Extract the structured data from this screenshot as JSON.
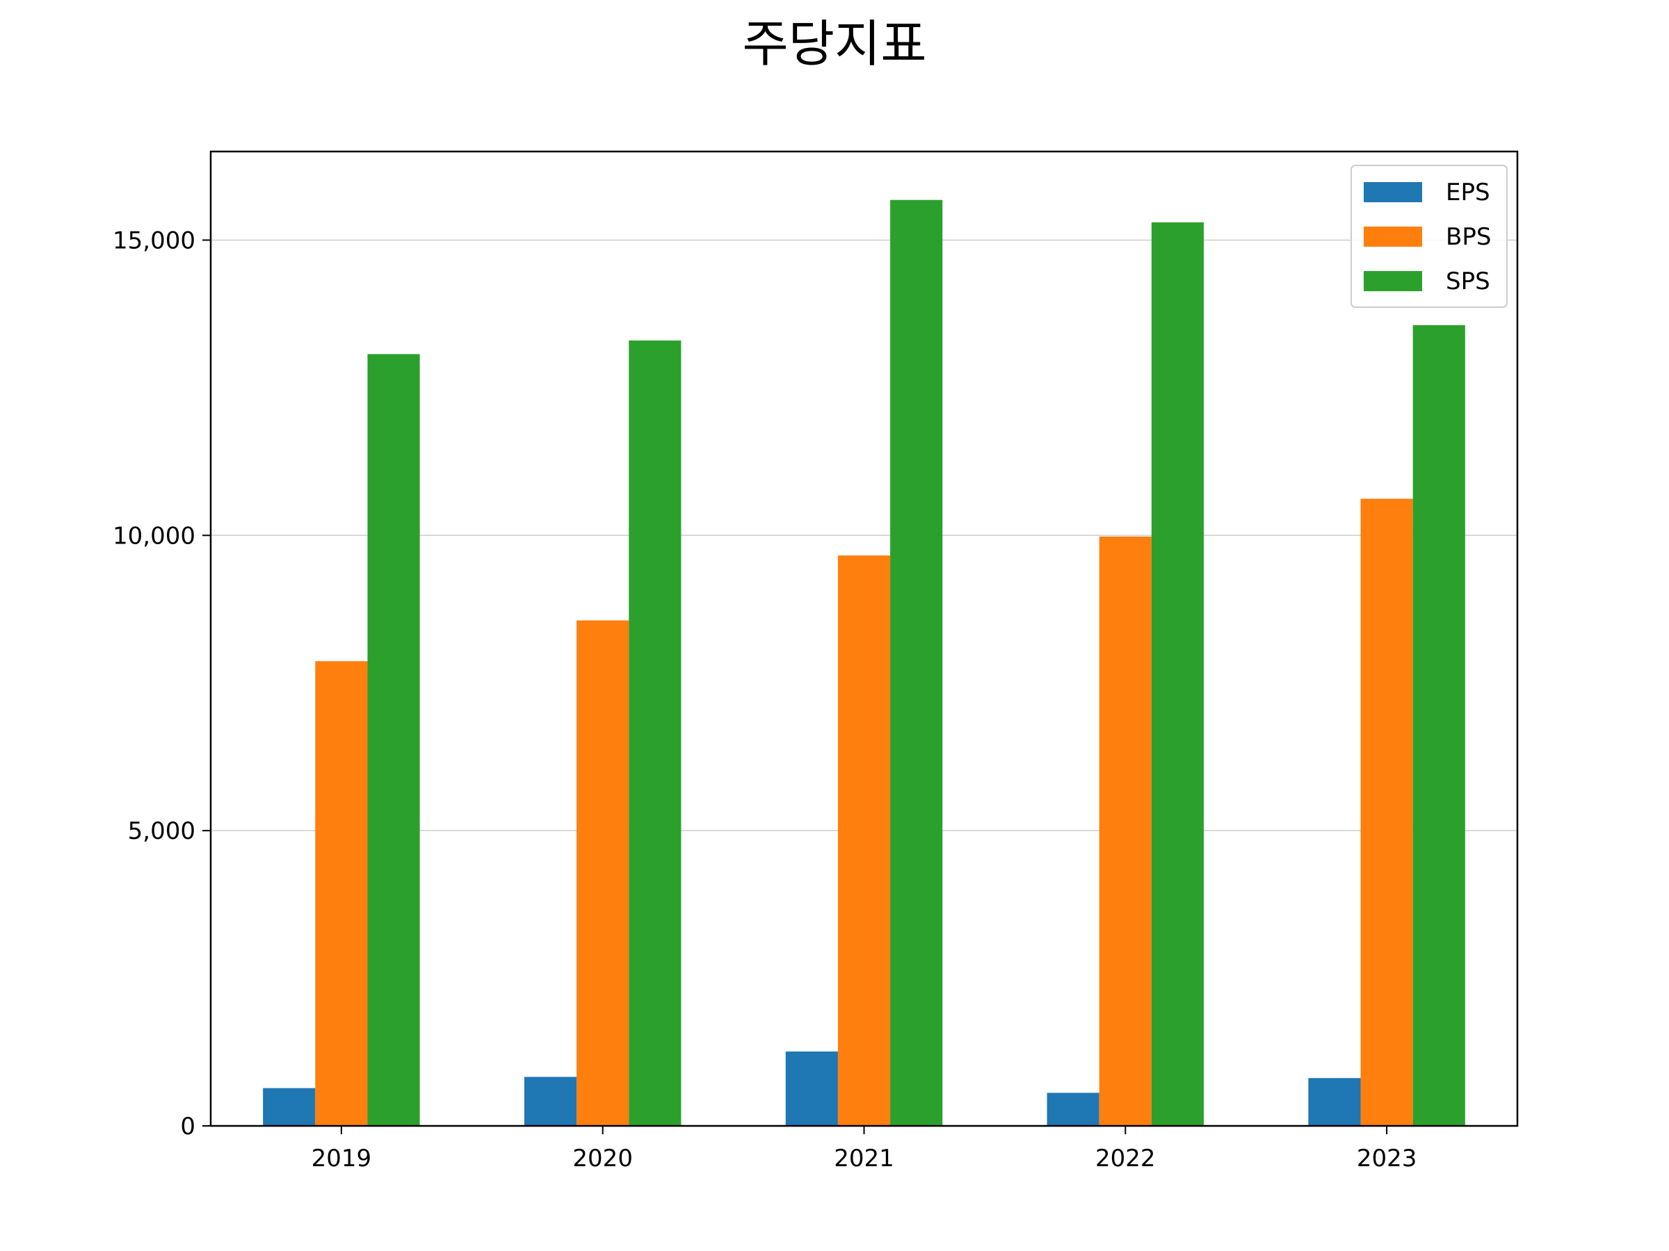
{
  "chart_data": {
    "type": "bar",
    "title": "주당지표",
    "xlabel": "",
    "ylabel": "",
    "categories": [
      "2019",
      "2020",
      "2021",
      "2022",
      "2023"
    ],
    "series": [
      {
        "name": "EPS",
        "color": "#1f77b4",
        "values": [
          640,
          830,
          1260,
          560,
          810
        ]
      },
      {
        "name": "BPS",
        "color": "#ff7f0e",
        "values": [
          7870,
          8560,
          9660,
          9980,
          10620
        ]
      },
      {
        "name": "SPS",
        "color": "#2ca02c",
        "values": [
          13070,
          13300,
          15680,
          15300,
          13560
        ]
      }
    ],
    "ylim": [
      0,
      16500
    ],
    "yticks": [
      {
        "value": 0,
        "label": "0"
      },
      {
        "value": 5000,
        "label": "5,000"
      },
      {
        "value": 10000,
        "label": "10,000"
      },
      {
        "value": 15000,
        "label": "15,000"
      }
    ],
    "grid": "horizontal",
    "legend_position": "top-right"
  }
}
